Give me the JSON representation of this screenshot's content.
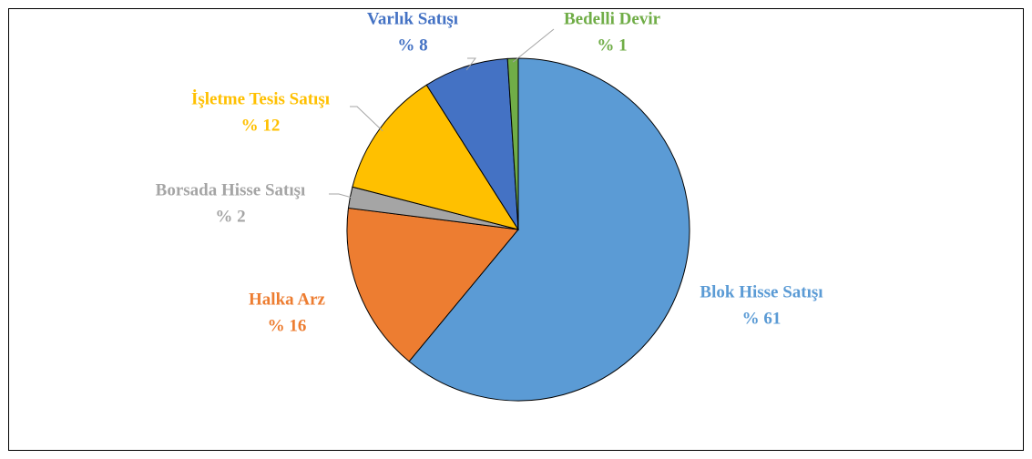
{
  "chart_data": {
    "type": "pie",
    "categories": [
      "Blok Hisse Satışı",
      "Halka Arz",
      "Borsada Hisse Satışı",
      "İşletme Tesis Satışı",
      "Varlık Satışı",
      "Bedelli Devir"
    ],
    "values": [
      61,
      16,
      2,
      12,
      8,
      1
    ],
    "value_labels": [
      "% 61",
      "% 16",
      "% 2",
      "% 12",
      "% 8",
      "% 1"
    ],
    "colors": [
      "#5b9bd5",
      "#ed7d31",
      "#a5a5a5",
      "#ffc000",
      "#4472c4",
      "#70ad47"
    ]
  }
}
